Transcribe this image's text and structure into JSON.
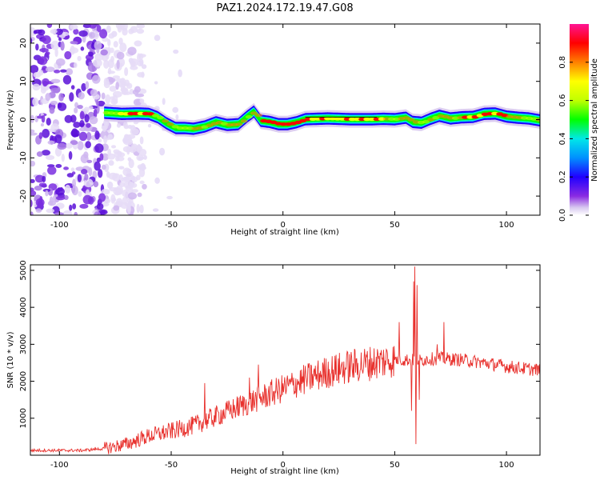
{
  "figure": {
    "title": "PAZ1.2024.172.19.47.G08"
  },
  "chart_data": [
    {
      "type": "heatmap",
      "xlabel": "Height of straight line (km)",
      "ylabel": "Frequency (Hz)",
      "xlim": [
        -113,
        115
      ],
      "ylim": [
        -25,
        25
      ],
      "xticks": [
        -100,
        -50,
        0,
        50,
        100
      ],
      "yticks": [
        -20,
        -10,
        0,
        10,
        20
      ],
      "colorbar": {
        "label": "Normalized spectral amplitude",
        "range": [
          0,
          1
        ],
        "ticks": [
          0.0,
          0.2,
          0.4,
          0.6,
          0.8
        ],
        "colors": [
          "#ffffff",
          "#d8c8f0",
          "#8a2be2",
          "#2000ff",
          "#0090ff",
          "#00e8e8",
          "#00ff00",
          "#c0ff00",
          "#ffff00",
          "#ff8000",
          "#ff0000",
          "#ff1493"
        ]
      },
      "ridge": {
        "x": [
          -80,
          -72,
          -65,
          -60,
          -56,
          -52,
          -48,
          -44,
          -40,
          -35,
          -30,
          -25,
          -20,
          -16,
          -13,
          -10,
          -6,
          -2,
          2,
          6,
          10,
          15,
          20,
          30,
          40,
          45,
          50,
          55,
          58,
          62,
          66,
          70,
          75,
          80,
          85,
          90,
          95,
          100,
          105,
          110,
          115
        ],
        "y": [
          1.8,
          1.5,
          1.6,
          1.5,
          0.6,
          -1,
          -2.2,
          -2.2,
          -2.4,
          -1.8,
          -0.7,
          -1.4,
          -1.2,
          0.8,
          2.1,
          -0.3,
          -0.6,
          -1.2,
          -1.2,
          -0.7,
          0.1,
          0.2,
          0.3,
          0.1,
          0.1,
          0.2,
          0.1,
          0.5,
          -0.6,
          -0.8,
          0.2,
          1.0,
          0.3,
          0.6,
          0.7,
          1.5,
          1.6,
          0.8,
          0.5,
          0.3,
          -0.2
        ]
      },
      "noise_region_x": [
        -113,
        -80
      ]
    },
    {
      "type": "line",
      "xlabel": "Height of straight line (km)",
      "ylabel": "SNR (10 * v/v)",
      "xlim": [
        -113,
        115
      ],
      "ylim": [
        0,
        5150
      ],
      "xticks": [
        -100,
        -50,
        0,
        50,
        100
      ],
      "yticks": [
        1000,
        2000,
        3000,
        4000,
        5000
      ],
      "series": [
        {
          "color": "#e8302c",
          "trend_x": [
            -113,
            -90,
            -80,
            -70,
            -60,
            -50,
            -40,
            -30,
            -20,
            -10,
            0,
            10,
            20,
            30,
            40,
            48,
            55,
            60,
            65,
            70,
            80,
            90,
            100,
            110,
            115
          ],
          "trend_y": [
            130,
            130,
            180,
            300,
            520,
            650,
            800,
            1050,
            1300,
            1550,
            1800,
            2050,
            2250,
            2400,
            2500,
            2580,
            2580,
            2560,
            2600,
            2620,
            2580,
            2500,
            2400,
            2330,
            2300
          ],
          "spikes_x": [
            59,
            58.5,
            59.5,
            60,
            57.5,
            61,
            72,
            69,
            52,
            -11,
            -15,
            -35
          ],
          "spikes_y": [
            5100,
            4700,
            300,
            4600,
            1200,
            1500,
            3600,
            3000,
            3600,
            2450,
            2100,
            1950
          ]
        }
      ]
    }
  ]
}
